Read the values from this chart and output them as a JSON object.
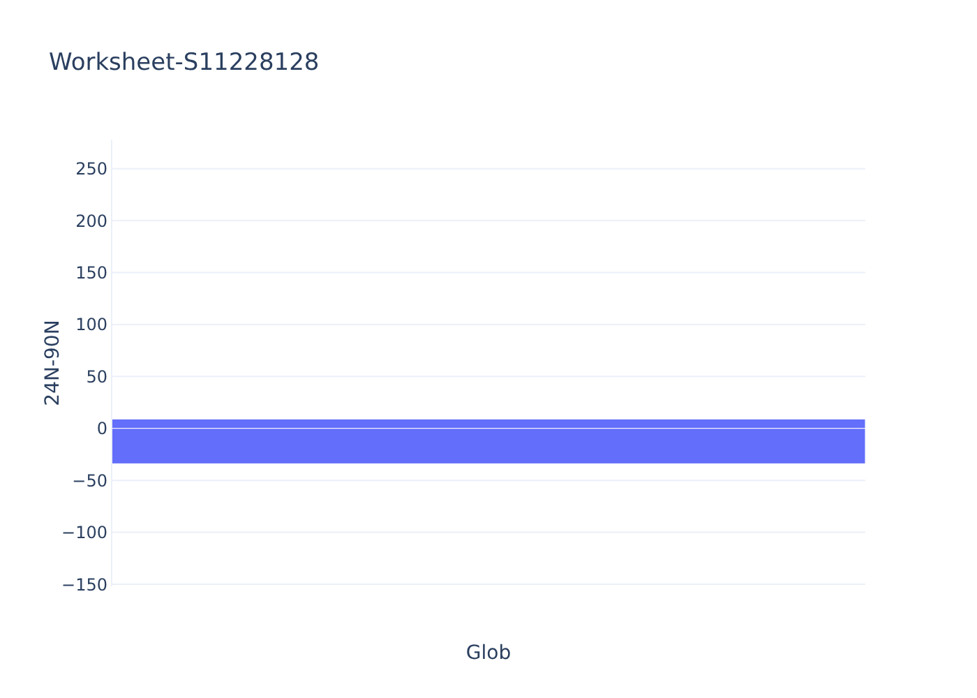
{
  "chart_data": {
    "type": "bar",
    "title": "Worksheet-S11228128",
    "xlabel": "Glob",
    "ylabel": "24N-90N",
    "categories": [
      null
    ],
    "series": [
      {
        "color": "#636efa",
        "values": [
          9
        ]
      },
      {
        "color": "#636efa",
        "values": [
          -34
        ]
      }
    ],
    "stacked": true,
    "ylim": [
      -152,
      278
    ],
    "yticks": [
      -150,
      -100,
      -50,
      0,
      50,
      100,
      150,
      200,
      250
    ],
    "grid": "y",
    "tick_labels": "y"
  }
}
